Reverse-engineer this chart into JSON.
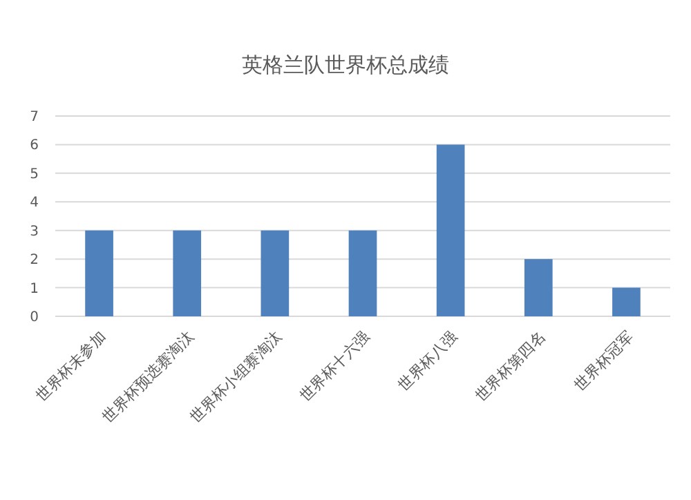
{
  "chart_data": {
    "type": "bar",
    "title": "英格兰队世界杯总成绩",
    "categories": [
      "世界杯未参加",
      "世界杯预选赛淘汰",
      "世界杯小组赛淘汰",
      "世界杯十六强",
      "世界杯八强",
      "世界杯第四名",
      "世界杯冠军"
    ],
    "values": [
      3,
      3,
      3,
      3,
      6,
      2,
      1
    ],
    "color": "#4f81bd",
    "ylim": [
      0,
      7
    ],
    "yticks": [
      0,
      1,
      2,
      3,
      4,
      5,
      6,
      7
    ],
    "grid": "y"
  }
}
